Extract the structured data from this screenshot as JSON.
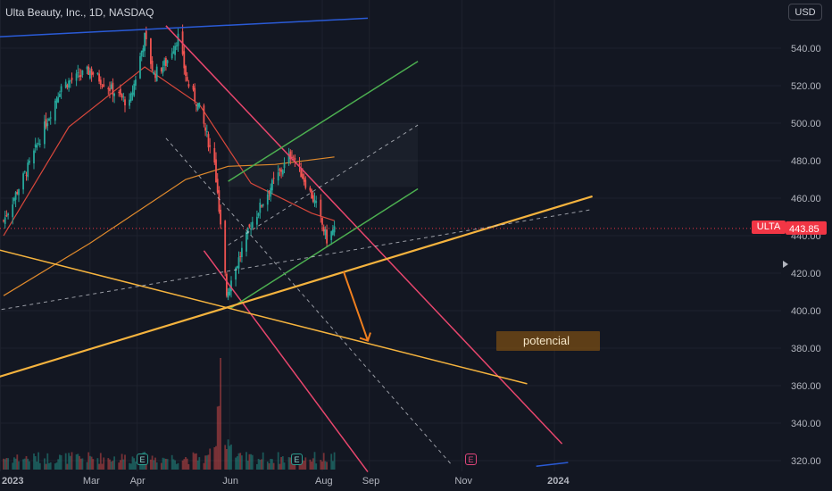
{
  "header": {
    "symbol_title": "Ulta Beauty, Inc., 1D, NASDAQ",
    "currency": "USD"
  },
  "last_price": {
    "ticker": "ULTA",
    "value": "443.85"
  },
  "annotation": {
    "text": "potencial"
  },
  "events": [
    "E",
    "E",
    "E"
  ],
  "colors": {
    "background": "#131722",
    "up": "#26a69a",
    "down": "#ef5350",
    "ma_fast": "#d8473b",
    "ma_slow": "#e08a2c",
    "channel_pink": "#e8466d",
    "channel_green": "#4caf50",
    "support_orange": "#f5b33e",
    "trend_blue": "#2a5bd7",
    "annotation_arrow": "#f07f1e"
  },
  "chart_data": {
    "type": "candlestick",
    "title": "Ulta Beauty, Inc., 1D, NASDAQ",
    "x_axis": {
      "tick_labels": [
        "2023",
        "Mar",
        "Apr",
        "Jun",
        "Aug",
        "Sep",
        "Nov",
        "2024"
      ]
    },
    "y_axis": {
      "tick_labels": [
        "540.00",
        "520.00",
        "500.00",
        "480.00",
        "460.00",
        "440.00",
        "420.00",
        "400.00",
        "380.00",
        "360.00",
        "340.00",
        "320.00"
      ],
      "range": [
        316,
        556
      ],
      "side": "right"
    },
    "price_anchors": [
      {
        "date": "2023-01-03",
        "close": 448
      },
      {
        "date": "2023-01-20",
        "close": 478
      },
      {
        "date": "2023-02-10",
        "close": 520
      },
      {
        "date": "2023-03-01",
        "close": 528
      },
      {
        "date": "2023-03-15",
        "close": 518
      },
      {
        "date": "2023-03-27",
        "close": 510
      },
      {
        "date": "2023-04-06",
        "close": 546
      },
      {
        "date": "2023-04-12",
        "close": 526
      },
      {
        "date": "2023-04-20",
        "close": 532
      },
      {
        "date": "2023-04-28",
        "close": 546
      },
      {
        "date": "2023-05-04",
        "close": 522
      },
      {
        "date": "2023-05-12",
        "close": 508
      },
      {
        "date": "2023-05-22",
        "close": 478
      },
      {
        "date": "2023-05-30",
        "close": 410
      },
      {
        "date": "2023-06-02",
        "close": 416
      },
      {
        "date": "2023-06-15",
        "close": 446
      },
      {
        "date": "2023-06-28",
        "close": 466
      },
      {
        "date": "2023-07-12",
        "close": 484
      },
      {
        "date": "2023-07-20",
        "close": 470
      },
      {
        "date": "2023-07-28",
        "close": 456
      },
      {
        "date": "2023-08-04",
        "close": 438
      },
      {
        "date": "2023-08-09",
        "close": 443.85
      }
    ],
    "series": [
      {
        "values": [
          [
            "2023-01-03",
            440
          ],
          [
            "2023-02-15",
            498
          ],
          [
            "2023-04-06",
            530
          ],
          [
            "2023-05-12",
            510
          ],
          [
            "2023-06-15",
            468
          ],
          [
            "2023-07-25",
            452
          ],
          [
            "2023-08-09",
            448
          ]
        ]
      },
      {
        "values": [
          [
            "2023-01-03",
            408
          ],
          [
            "2023-03-01",
            436
          ],
          [
            "2023-05-03",
            470
          ],
          [
            "2023-05-31",
            477
          ],
          [
            "2023-07-01",
            478
          ],
          [
            "2023-08-09",
            482
          ]
        ]
      }
    ],
    "volume": {
      "spike_date": "2023-05-26",
      "relative_heights": [
        0.12,
        0.35,
        0.55,
        1.0
      ]
    },
    "drawings": [
      {
        "kind": "trendline",
        "color": "blue",
        "from": [
          "2022-12-28",
          546
        ],
        "to": [
          "2023-08-31",
          556
        ]
      },
      {
        "kind": "trendline",
        "color": "blue",
        "from": [
          "2023-12-20",
          317
        ],
        "to": [
          "2024-01-10",
          319
        ]
      },
      {
        "kind": "channel",
        "color": "pink",
        "from": [
          "2023-04-20",
          552
        ],
        "to": [
          "2024-01-06",
          329
        ]
      },
      {
        "kind": "channel",
        "color": "pink",
        "from": [
          "2023-05-15",
          432
        ],
        "to": [
          "2023-08-31",
          314
        ]
      },
      {
        "kind": "channel_mid",
        "style": "dashed",
        "from": [
          "2023-04-20",
          492
        ],
        "to": [
          "2023-10-25",
          318
        ]
      },
      {
        "kind": "channel",
        "color": "green",
        "from": [
          "2023-05-31",
          469
        ],
        "to": [
          "2023-10-03",
          533
        ]
      },
      {
        "kind": "channel",
        "color": "green",
        "from": [
          "2023-06-01",
          401
        ],
        "to": [
          "2023-10-03",
          465
        ]
      },
      {
        "kind": "channel_mid",
        "style": "dashed",
        "from": [
          "2023-05-31",
          435
        ],
        "to": [
          "2023-10-03",
          499
        ]
      },
      {
        "kind": "trendline",
        "color": "orange",
        "from": [
          "2022-12-28",
          364
        ],
        "to": [
          "2024-01-26",
          461
        ]
      },
      {
        "kind": "trendline",
        "color": "orange",
        "from": [
          "2022-12-28",
          433
        ],
        "to": [
          "2023-12-14",
          361
        ]
      },
      {
        "kind": "trendline",
        "style": "dashed",
        "from": [
          "2022-12-28",
          400
        ],
        "to": [
          "2024-01-26",
          454
        ]
      },
      {
        "kind": "arrow",
        "color": "orange",
        "from": [
          "2023-08-15",
          421
        ],
        "to": [
          "2023-08-31",
          384
        ]
      }
    ]
  }
}
